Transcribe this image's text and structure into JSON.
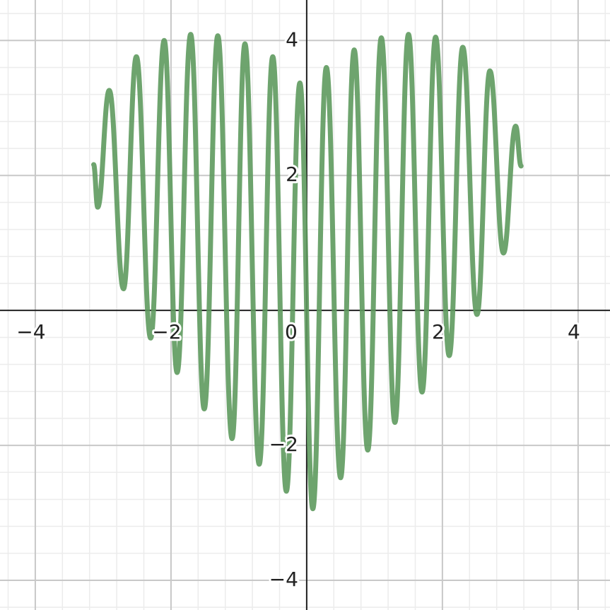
{
  "chart_data": {
    "type": "line",
    "x": [
      -3.14,
      -3.08,
      -2.91,
      -2.7,
      -2.51,
      -2.3,
      -2.1,
      -1.91,
      -1.71,
      -1.51,
      -1.31,
      -1.1,
      -0.91,
      -0.7,
      -0.5,
      -0.3,
      -0.1,
      0.09,
      0.29,
      0.5,
      0.7,
      0.9,
      1.1,
      1.3,
      1.5,
      1.7,
      1.9,
      2.1,
      2.3,
      2.51,
      2.7,
      2.9,
      3.08,
      3.16
    ],
    "values": [
      2.16,
      1.53,
      3.26,
      0.32,
      3.76,
      -0.41,
      4.0,
      -0.92,
      4.09,
      -1.46,
      4.07,
      -1.9,
      3.95,
      -2.28,
      3.76,
      -2.68,
      3.37,
      -2.94,
      3.6,
      -2.48,
      3.86,
      -2.07,
      4.04,
      -1.66,
      4.09,
      -1.21,
      4.05,
      -0.67,
      3.9,
      -0.06,
      3.55,
      0.85,
      2.73,
      2.14
    ],
    "color": "#5e9a5e",
    "xlim": [
      -4.52,
      4.47
    ],
    "ylim": [
      -4.44,
      4.6
    ],
    "xticks": [
      {
        "value": -4,
        "label": "−4"
      },
      {
        "value": -2,
        "label": "−2"
      },
      0,
      2,
      4
    ],
    "yticks": [
      {
        "value": -4,
        "label": "−4"
      },
      {
        "value": -2,
        "label": "−2"
      },
      2,
      4
    ],
    "grid": true
  }
}
